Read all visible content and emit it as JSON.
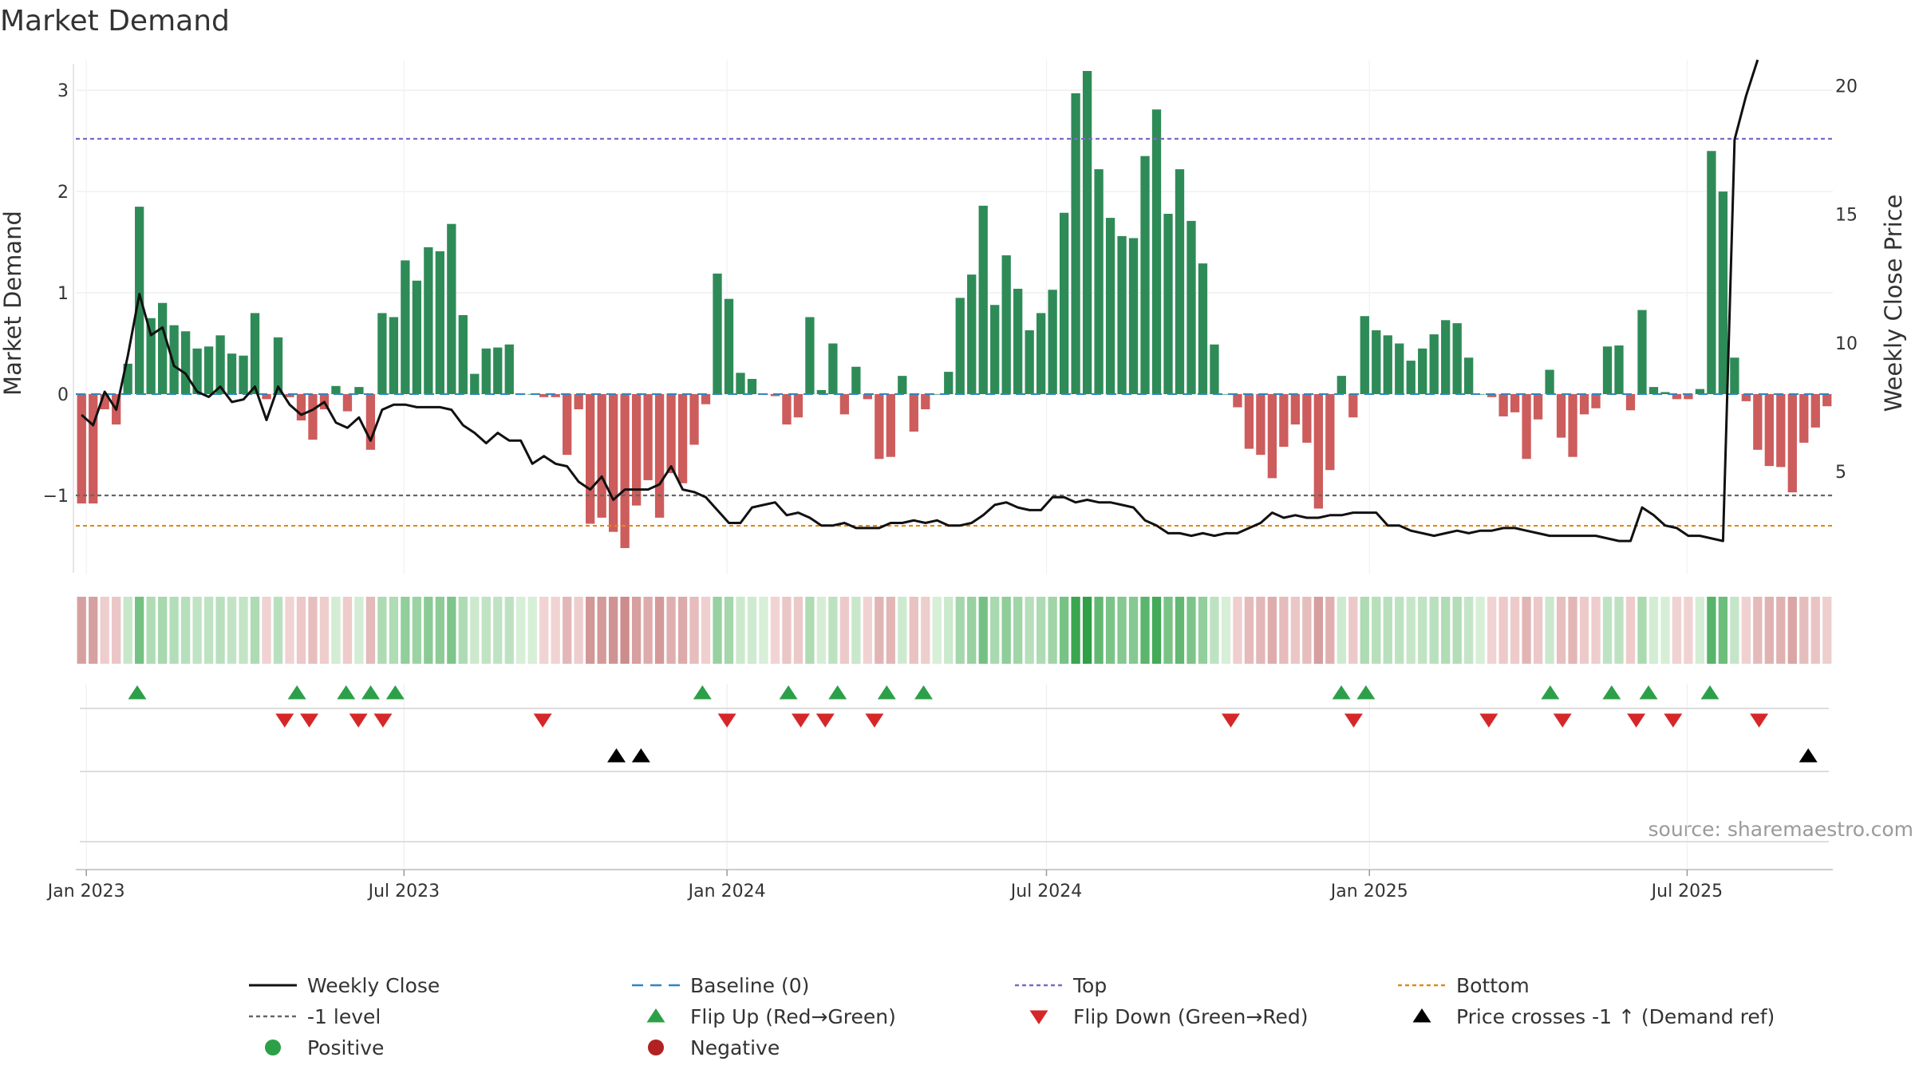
{
  "chart_data": {
    "type": "bar",
    "title": "Market Demand",
    "ylabel": "Market Demand",
    "y2label": "Weekly Close Price",
    "ylim": [
      -1.78,
      3.3
    ],
    "y2lim": [
      1.0,
      21.0
    ],
    "yticks": [
      -1,
      0,
      1,
      2,
      3
    ],
    "yticklabels": [
      "−1",
      "0",
      "1",
      "2",
      "3"
    ],
    "y2ticks": [
      5,
      10,
      15,
      20
    ],
    "y2ticklabels": [
      "5",
      "10",
      "15",
      "20"
    ],
    "start_date": "2022-12-26",
    "end_date": "2025-09-22",
    "xticks": [
      "2023-01-01",
      "2023-07-01",
      "2024-01-01",
      "2024-07-01",
      "2025-01-01",
      "2025-07-01"
    ],
    "xticklabels": [
      "Jan 2023",
      "Jul 2023",
      "Jan 2024",
      "Jul 2024",
      "Jan 2025",
      "Jul 2025"
    ],
    "reference_lines": {
      "top": 2.52,
      "bottom": -1.3,
      "minus_one": -1,
      "baseline": 0
    },
    "series": [
      {
        "name": "Market Demand",
        "type": "bar",
        "values": [
          -1.08,
          -1.08,
          -0.15,
          -0.3,
          0.3,
          1.85,
          0.75,
          0.9,
          0.68,
          0.62,
          0.45,
          0.47,
          0.58,
          0.4,
          0.38,
          0.8,
          -0.05,
          0.56,
          -0.03,
          -0.26,
          -0.45,
          -0.15,
          0.08,
          -0.17,
          0.07,
          -0.55,
          0.8,
          0.76,
          1.32,
          1.12,
          1.45,
          1.41,
          1.68,
          0.78,
          0.2,
          0.45,
          0.46,
          0.49,
          0.0,
          0.0,
          -0.03,
          -0.03,
          -0.6,
          -0.15,
          -1.28,
          -1.22,
          -1.36,
          -1.52,
          -1.1,
          -0.85,
          -1.22,
          -0.78,
          -0.88,
          -0.5,
          -0.1,
          1.19,
          0.94,
          0.21,
          0.15,
          0.0,
          -0.02,
          -0.3,
          -0.23,
          0.76,
          0.04,
          0.5,
          -0.2,
          0.27,
          -0.05,
          -0.64,
          -0.62,
          0.18,
          -0.37,
          -0.15,
          0.0,
          0.22,
          0.95,
          1.18,
          1.86,
          0.88,
          1.37,
          1.04,
          0.63,
          0.8,
          1.03,
          1.79,
          2.97,
          3.19,
          2.22,
          1.74,
          1.56,
          1.54,
          2.35,
          2.81,
          1.78,
          2.22,
          1.71,
          1.29,
          0.49,
          0.0,
          -0.13,
          -0.54,
          -0.6,
          -0.83,
          -0.52,
          -0.3,
          -0.48,
          -1.13,
          -0.75,
          0.18,
          -0.23,
          0.77,
          0.63,
          0.58,
          0.5,
          0.33,
          0.45,
          0.59,
          0.73,
          0.7,
          0.36,
          0.0,
          -0.03,
          -0.22,
          -0.18,
          -0.64,
          -0.25,
          0.24,
          -0.43,
          -0.62,
          -0.2,
          -0.14,
          0.47,
          0.48,
          -0.16,
          0.83,
          0.07,
          0.02,
          -0.05,
          -0.05,
          0.05,
          2.4,
          2.0,
          0.36,
          -0.07,
          -0.55,
          -0.71,
          -0.72,
          -0.97,
          -0.48,
          -0.33,
          -0.12
        ]
      },
      {
        "name": "Weekly Close",
        "type": "line",
        "axis": "right",
        "values": [
          7.2,
          6.8,
          8.1,
          7.4,
          9.5,
          11.9,
          10.3,
          10.6,
          9.1,
          8.8,
          8.1,
          7.9,
          8.3,
          7.7,
          7.8,
          8.3,
          7.0,
          8.3,
          7.6,
          7.2,
          7.4,
          7.7,
          6.9,
          6.7,
          7.1,
          6.2,
          7.4,
          7.6,
          7.6,
          7.5,
          7.5,
          7.5,
          7.4,
          6.8,
          6.5,
          6.1,
          6.5,
          6.2,
          6.2,
          5.3,
          5.6,
          5.3,
          5.2,
          4.6,
          4.3,
          4.8,
          3.9,
          4.3,
          4.3,
          4.3,
          4.5,
          5.2,
          4.3,
          4.2,
          4.0,
          3.5,
          3.0,
          3.0,
          3.6,
          3.7,
          3.8,
          3.3,
          3.4,
          3.2,
          2.9,
          2.9,
          3.0,
          2.8,
          2.8,
          2.8,
          3.0,
          3.0,
          3.1,
          3.0,
          3.1,
          2.9,
          2.9,
          3.0,
          3.3,
          3.7,
          3.8,
          3.6,
          3.5,
          3.5,
          4.0,
          4.0,
          3.8,
          3.9,
          3.8,
          3.8,
          3.7,
          3.6,
          3.1,
          2.9,
          2.6,
          2.6,
          2.5,
          2.6,
          2.5,
          2.6,
          2.6,
          2.8,
          3.0,
          3.4,
          3.2,
          3.3,
          3.2,
          3.2,
          3.3,
          3.3,
          3.4,
          3.4,
          3.4,
          2.9,
          2.9,
          2.7,
          2.6,
          2.5,
          2.6,
          2.7,
          2.6,
          2.7,
          2.7,
          2.8,
          2.8,
          2.7,
          2.6,
          2.5,
          2.5,
          2.5,
          2.5,
          2.5,
          2.4,
          2.3,
          2.3,
          3.6,
          3.3,
          2.9,
          2.8,
          2.5,
          2.5,
          2.4,
          2.3,
          17.9,
          19.6,
          21.0
        ]
      }
    ],
    "flip_up_dates": [
      "2023-01-30",
      "2023-05-01",
      "2023-05-29",
      "2023-06-12",
      "2023-06-26",
      "2023-12-18",
      "2024-02-05",
      "2024-03-04",
      "2024-04-01",
      "2024-04-22",
      "2024-12-16",
      "2024-12-30",
      "2025-04-14",
      "2025-05-19",
      "2025-06-09",
      "2025-07-14"
    ],
    "flip_down_dates": [
      "2023-04-24",
      "2023-05-08",
      "2023-06-05",
      "2023-06-19",
      "2023-09-18",
      "2024-01-01",
      "2024-02-12",
      "2024-02-26",
      "2024-03-25",
      "2024-10-14",
      "2024-12-23",
      "2025-03-10",
      "2025-04-21",
      "2025-06-02",
      "2025-06-23",
      "2025-08-11"
    ],
    "price_cross_dates": [
      "2023-10-30",
      "2023-11-13",
      "2025-09-08"
    ],
    "source": "source: sharemaestro.com",
    "legend": [
      {
        "label": "Weekly Close",
        "symbol": "line",
        "color": "#111111"
      },
      {
        "label": "Baseline (0)",
        "symbol": "dash",
        "color": "#2e86c1"
      },
      {
        "label": "Top",
        "symbol": "dot",
        "color": "#7b68c9"
      },
      {
        "label": "Bottom",
        "symbol": "dot",
        "color": "#e08a1a"
      },
      {
        "label": "-1 level",
        "symbol": "dot",
        "color": "#666666"
      },
      {
        "label": "Flip Up (Red→Green)",
        "symbol": "tri-up",
        "color": "#2ca048"
      },
      {
        "label": "Flip Down (Green→Red)",
        "symbol": "tri-down",
        "color": "#d62728"
      },
      {
        "label": "Price crosses -1 ↑ (Demand ref)",
        "symbol": "tri-up",
        "color": "#000000"
      },
      {
        "label": "Positive",
        "symbol": "circle",
        "color": "#2ca048"
      },
      {
        "label": "Negative",
        "symbol": "circle",
        "color": "#b22222"
      }
    ],
    "colors": {
      "positive": "#2e8b57",
      "negative": "#cd5c5c",
      "price": "#111111"
    }
  }
}
